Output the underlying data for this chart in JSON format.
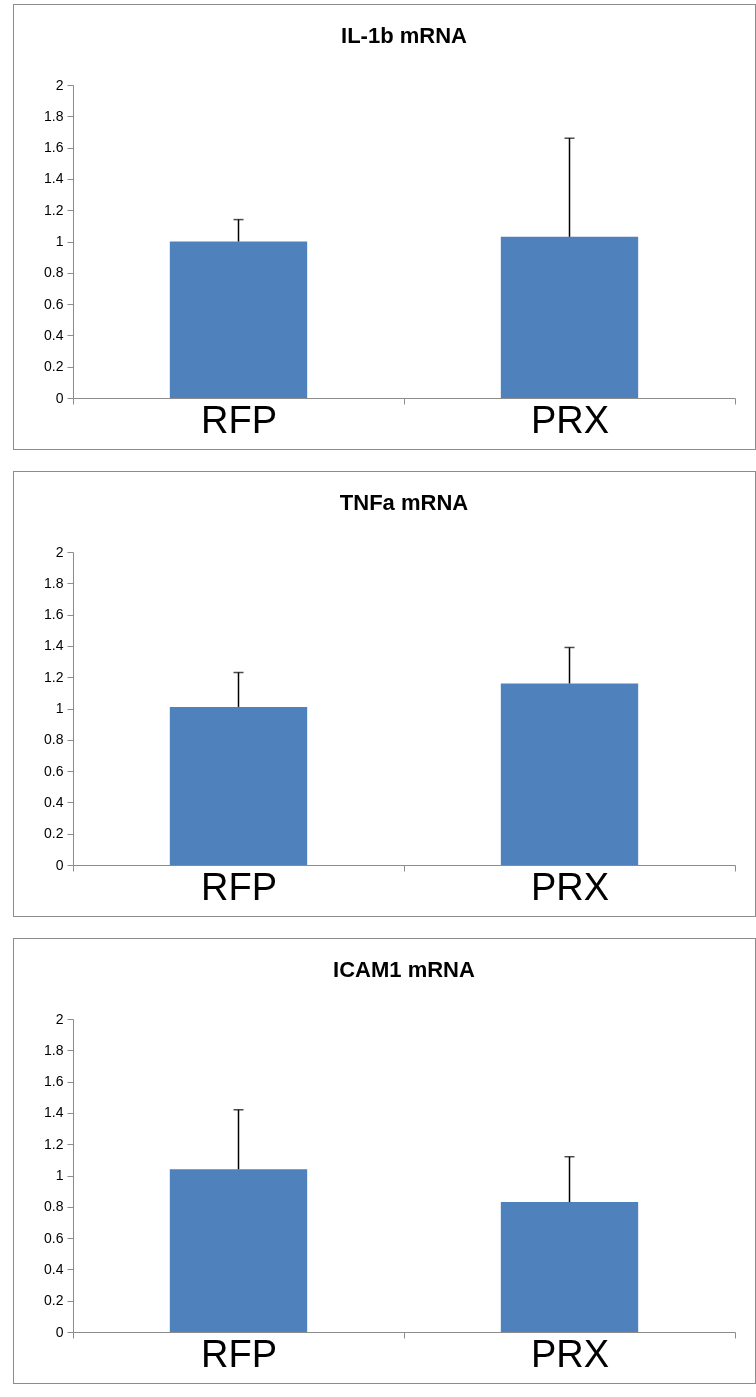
{
  "chart_data": [
    {
      "type": "bar",
      "title": "IL-1b mRNA",
      "categories": [
        "RFP",
        "PRX"
      ],
      "values": [
        1.0,
        1.03
      ],
      "errors": [
        [
          1.0,
          1.14
        ],
        [
          1.03,
          1.66
        ]
      ],
      "color": "#4f81bd",
      "ylim": [
        0,
        2
      ],
      "yticks": [
        0,
        0.2,
        0.4,
        0.6,
        0.8,
        1,
        1.2,
        1.4,
        1.6,
        1.8,
        2
      ]
    },
    {
      "type": "bar",
      "title": "TNFa mRNA",
      "categories": [
        "RFP",
        "PRX"
      ],
      "values": [
        1.01,
        1.16
      ],
      "errors": [
        [
          1.01,
          1.23
        ],
        [
          1.16,
          1.39
        ]
      ],
      "color": "#4f81bd",
      "ylim": [
        0,
        2
      ],
      "yticks": [
        0,
        0.2,
        0.4,
        0.6,
        0.8,
        1,
        1.2,
        1.4,
        1.6,
        1.8,
        2
      ]
    },
    {
      "type": "bar",
      "title": "ICAM1 mRNA",
      "categories": [
        "RFP",
        "PRX"
      ],
      "values": [
        1.04,
        0.83
      ],
      "errors": [
        [
          1.04,
          1.42
        ],
        [
          0.83,
          1.12
        ]
      ],
      "color": "#4f81bd",
      "ylim": [
        0,
        2
      ],
      "yticks": [
        0,
        0.2,
        0.4,
        0.6,
        0.8,
        1,
        1.2,
        1.4,
        1.6,
        1.8,
        2
      ]
    }
  ]
}
